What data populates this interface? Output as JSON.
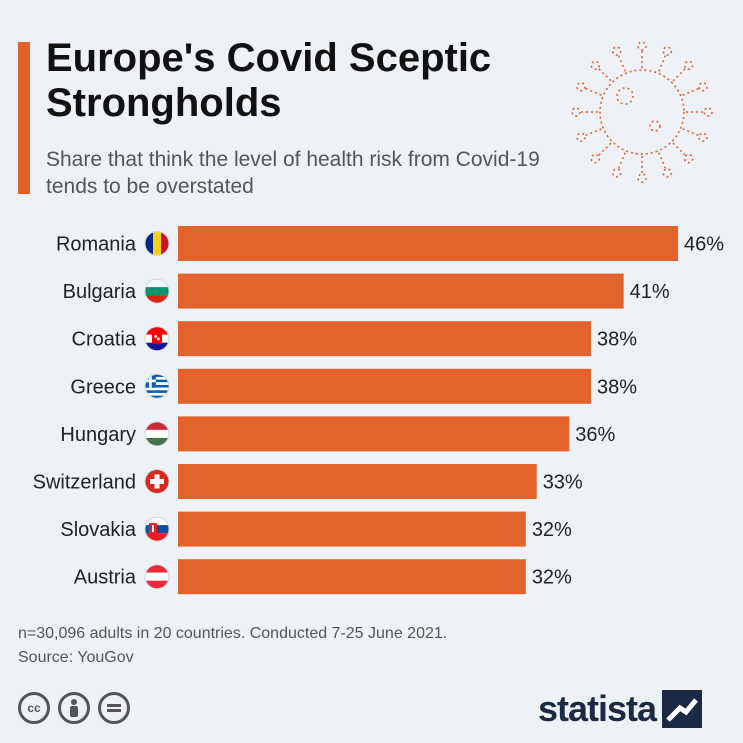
{
  "header": {
    "title": "Europe's Covid Sceptic Strongholds",
    "subtitle": "Share that think the level of health risk from Covid-19 tends to be overstated"
  },
  "colors": {
    "accent": "#e4632d",
    "bar": "#e4632d",
    "brand": "#1b2a44"
  },
  "chart_data": {
    "type": "bar",
    "orientation": "horizontal",
    "categories": [
      "Romania",
      "Bulgaria",
      "Croatia",
      "Greece",
      "Hungary",
      "Switzerland",
      "Slovakia",
      "Austria"
    ],
    "values": [
      46,
      41,
      38,
      38,
      36,
      33,
      32,
      32
    ],
    "value_suffix": "%",
    "flag_icons": [
      "romania-flag-icon",
      "bulgaria-flag-icon",
      "croatia-flag-icon",
      "greece-flag-icon",
      "hungary-flag-icon",
      "switzerland-flag-icon",
      "slovakia-flag-icon",
      "austria-flag-icon"
    ],
    "xlim": [
      0,
      46
    ],
    "grid": false,
    "legend": "none"
  },
  "footer": {
    "note": "n=30,096 adults in 20 countries. Conducted 7-25 June 2021.",
    "source": "Source: YouGov",
    "license_icons": [
      "creative-commons-icon",
      "attribution-icon",
      "no-derivatives-icon"
    ],
    "brand": "statista"
  }
}
